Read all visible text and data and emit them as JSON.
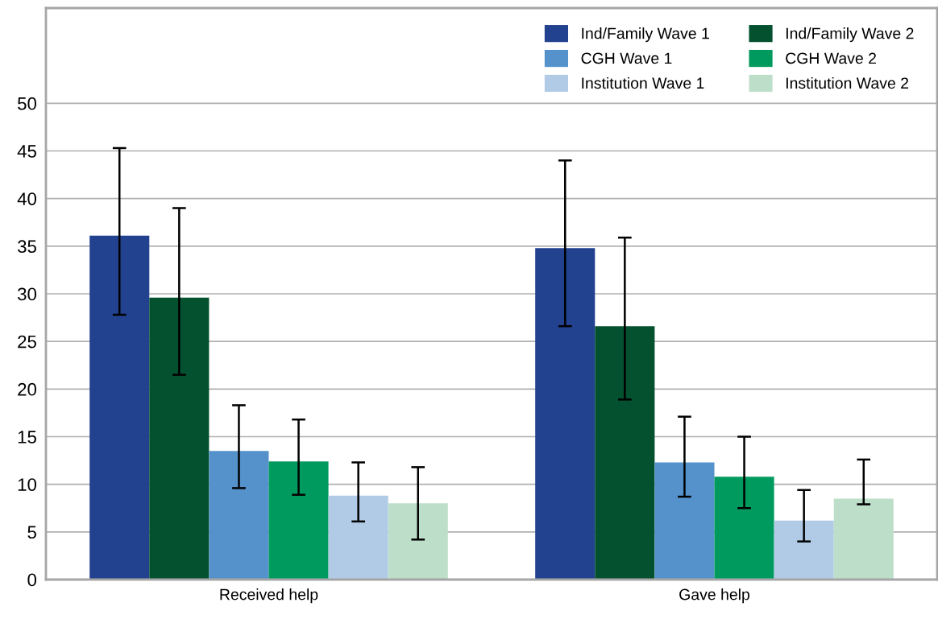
{
  "chart_data": {
    "type": "bar",
    "categories": [
      "Received help",
      "Gave help"
    ],
    "series": [
      {
        "name": "Ind/Family Wave 1",
        "color": "#22418f",
        "values": [
          36.1,
          34.8
        ],
        "errors": [
          [
            27.8,
            45.3
          ],
          [
            26.6,
            44.0
          ]
        ]
      },
      {
        "name": "Ind/Family Wave 2",
        "color": "#03512f",
        "values": [
          29.6,
          26.6
        ],
        "errors": [
          [
            21.5,
            39.0
          ],
          [
            18.9,
            35.9
          ]
        ]
      },
      {
        "name": "CGH Wave 1",
        "color": "#5592cb",
        "values": [
          13.5,
          12.3
        ],
        "errors": [
          [
            9.6,
            18.3
          ],
          [
            8.7,
            17.1
          ]
        ]
      },
      {
        "name": "CGH Wave 2",
        "color": "#009a5f",
        "values": [
          12.4,
          10.8
        ],
        "errors": [
          [
            8.9,
            16.8
          ],
          [
            7.5,
            15.0
          ]
        ]
      },
      {
        "name": "Institution Wave 1",
        "color": "#b1cbe6",
        "values": [
          8.8,
          6.2
        ],
        "errors": [
          [
            6.1,
            12.3
          ],
          [
            4.0,
            9.4
          ]
        ]
      },
      {
        "name": "Institution Wave 2",
        "color": "#bddfc9",
        "values": [
          8.0,
          8.5
        ],
        "errors": [
          [
            4.2,
            11.8
          ],
          [
            7.9,
            12.6
          ]
        ]
      }
    ],
    "ylim": [
      0,
      60
    ],
    "yticks": [
      0,
      5,
      10,
      15,
      20,
      25,
      30,
      35,
      40,
      45,
      50
    ],
    "grid": "y",
    "legend": "top right"
  }
}
